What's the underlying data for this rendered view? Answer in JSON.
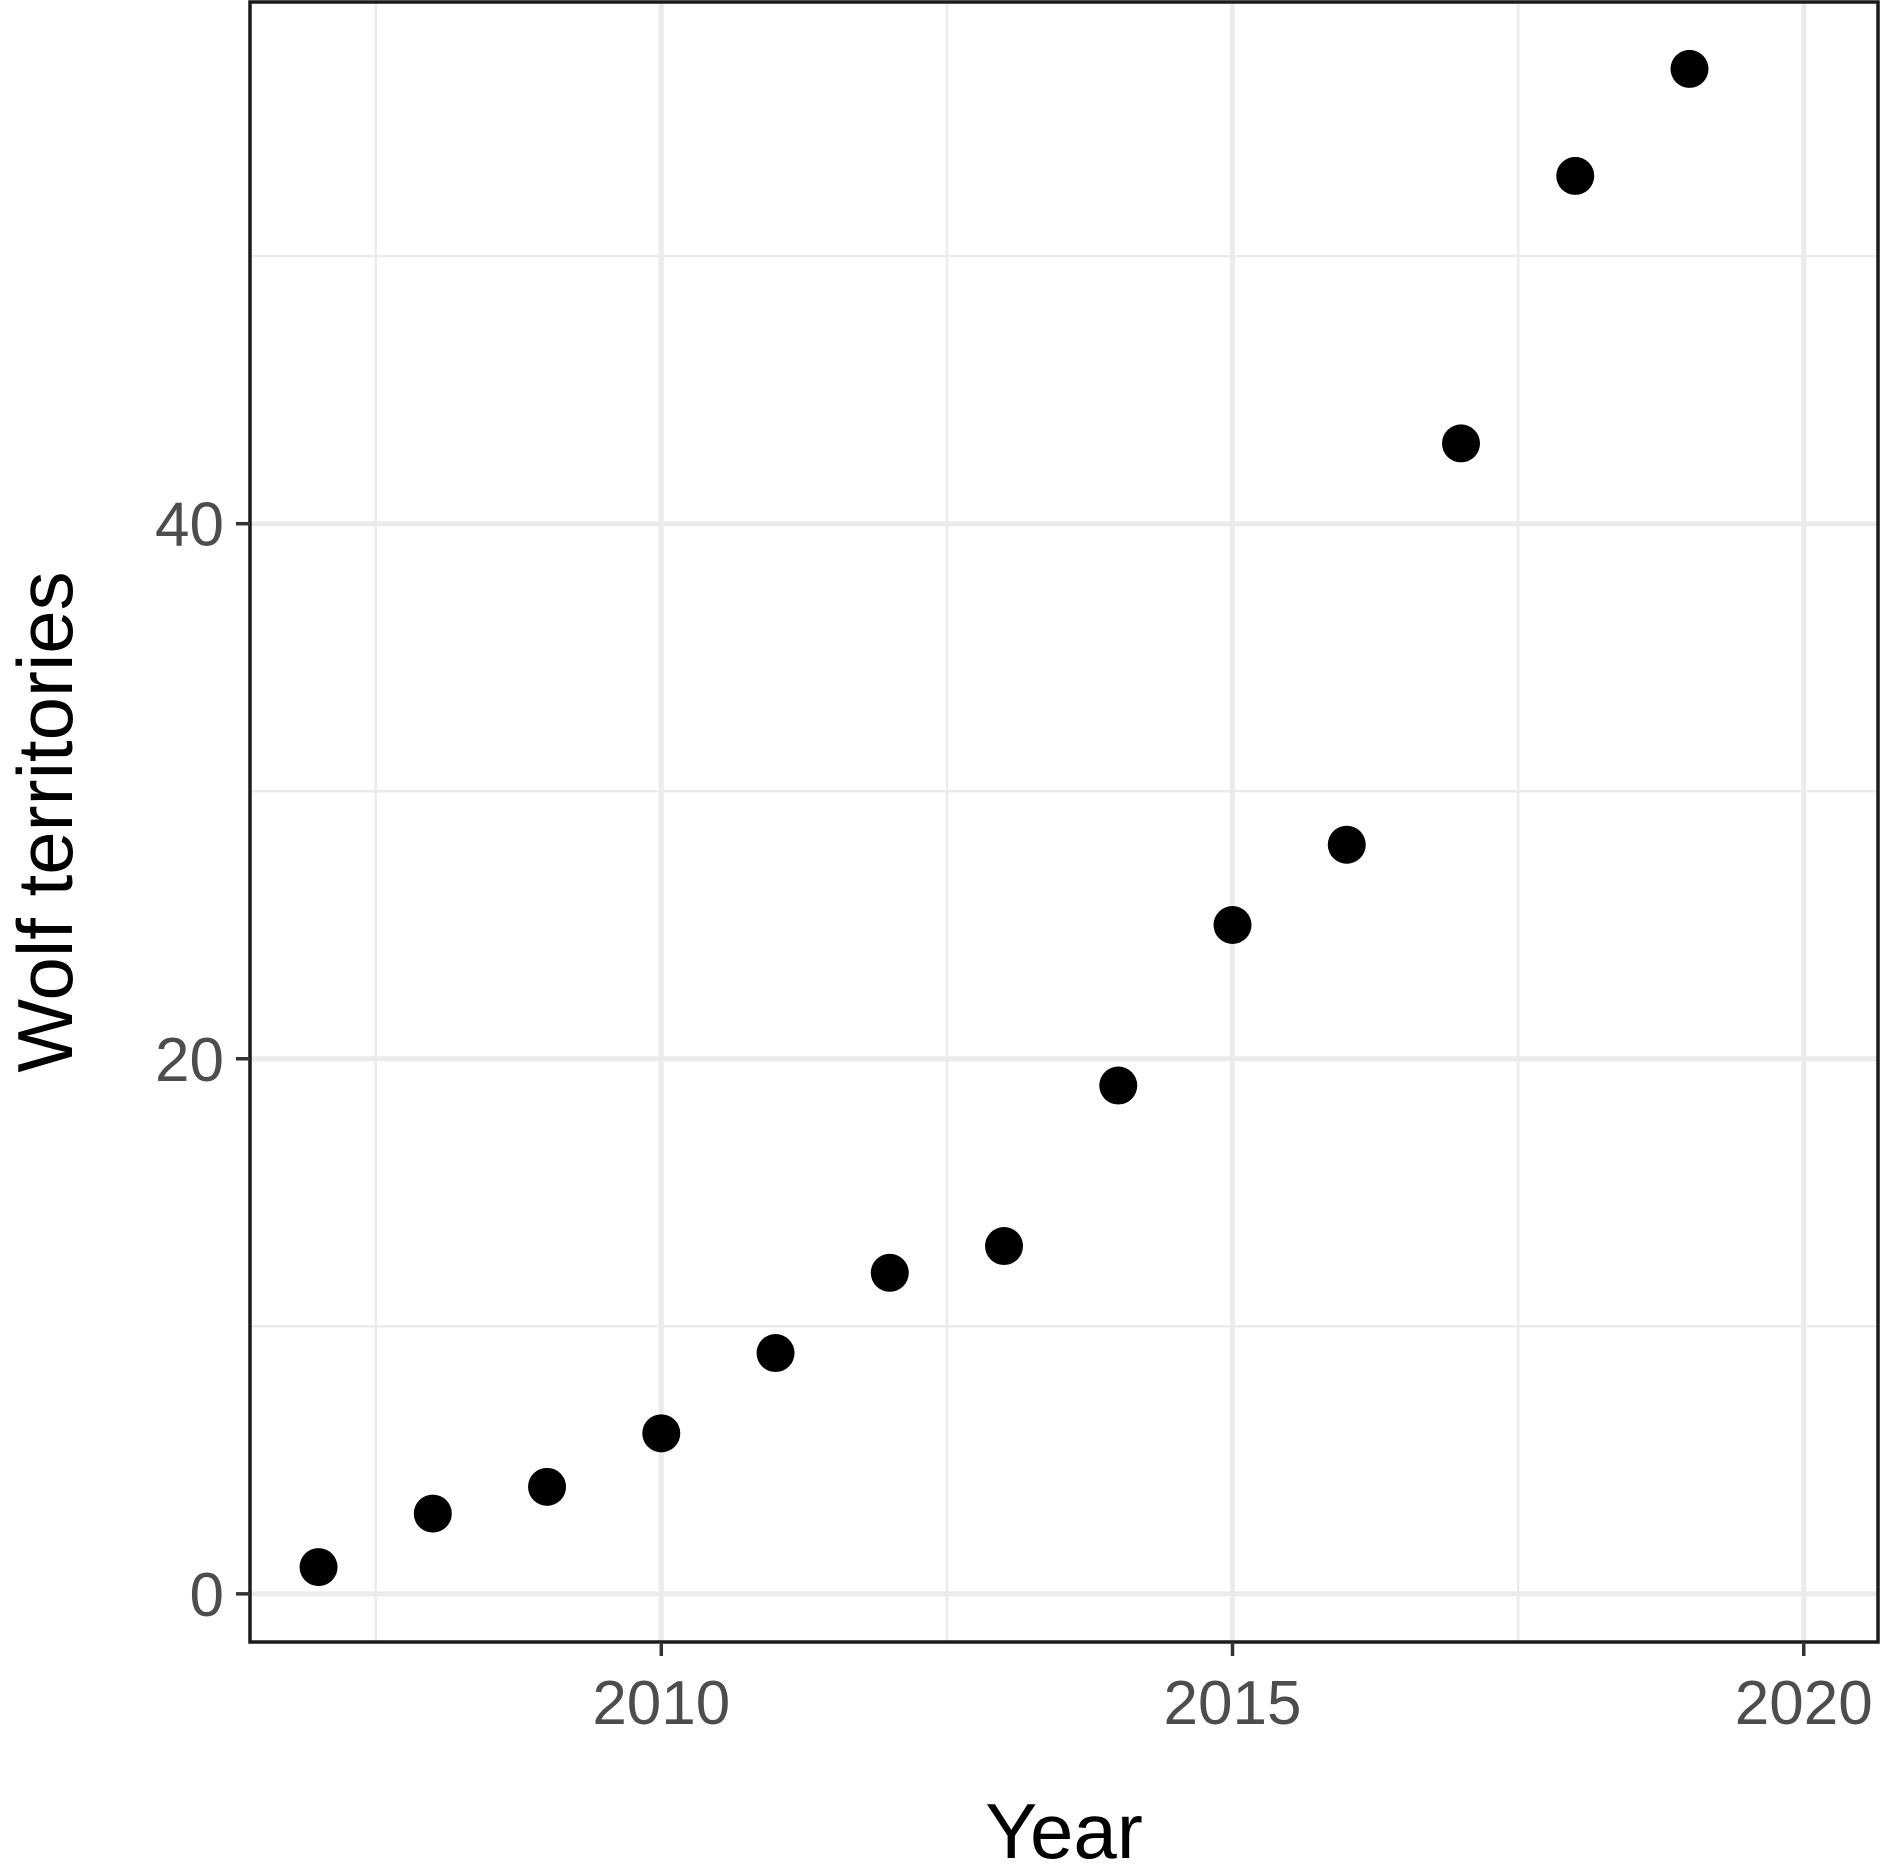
{
  "chart_data": {
    "type": "scatter",
    "title": "",
    "xlabel": "Year",
    "ylabel": "Wolf territories",
    "xlim": [
      2006.4,
      2020.65
    ],
    "ylim": [
      -1.8,
      59.5
    ],
    "x_ticks": [
      2010,
      2015,
      2020
    ],
    "x_tick_labels": [
      "2010",
      "2015",
      "2020"
    ],
    "x_minor_ticks": [
      2007.5,
      2012.5,
      2017.5
    ],
    "y_ticks": [
      0,
      20,
      40
    ],
    "y_tick_labels": [
      "0",
      "20",
      "40"
    ],
    "y_minor_ticks": [
      10,
      30,
      50
    ],
    "grid": true,
    "legend": "none",
    "marker_color": "#000000",
    "series": [
      {
        "x": [
          2007,
          2008,
          2009,
          2010,
          2011,
          2012,
          2013,
          2014,
          2015,
          2016,
          2017,
          2018,
          2019
        ],
        "y": [
          1,
          3,
          4,
          6,
          9,
          12,
          13,
          19,
          25,
          28,
          43,
          53,
          57
        ]
      }
    ]
  }
}
